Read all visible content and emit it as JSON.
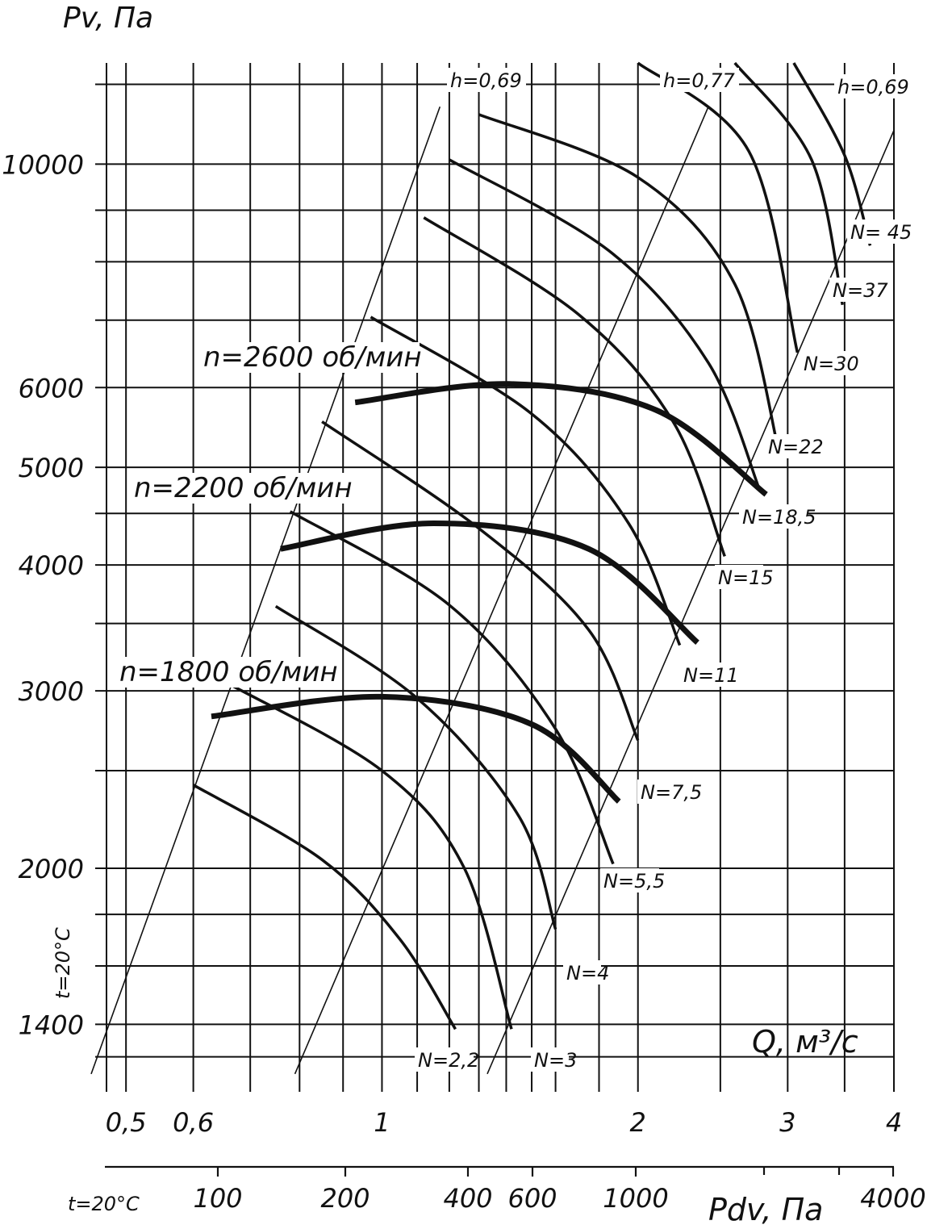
{
  "chart_data": {
    "type": "line",
    "y_axis": {
      "label": "Pv, Па",
      "scale": "log",
      "range": [
        1200,
        12600
      ],
      "ticks": [
        {
          "value": 10000,
          "label": "10000"
        },
        {
          "value": 6000,
          "label": "6000"
        },
        {
          "value": 5000,
          "label": "5000"
        },
        {
          "value": 4000,
          "label": "4000"
        },
        {
          "value": 3000,
          "label": "3000"
        },
        {
          "value": 2000,
          "label": "2000"
        },
        {
          "value": 1400,
          "label": "1400"
        }
      ],
      "side_label": "t=20°C"
    },
    "x_axis": {
      "label": "Q, м³/с",
      "scale": "log",
      "range": [
        0.46,
        4
      ],
      "ticks": [
        {
          "value": 0.5,
          "label": "0,5"
        },
        {
          "value": 0.6,
          "label": "0,6"
        },
        {
          "value": 1,
          "label": "1"
        },
        {
          "value": 2,
          "label": "2"
        },
        {
          "value": 3,
          "label": "3"
        },
        {
          "value": 4,
          "label": "4"
        }
      ]
    },
    "pdv_axis": {
      "label": "Pdv, Па",
      "side_label": "t=20°C",
      "ticks": [
        {
          "value": 100,
          "label": "100"
        },
        {
          "value": 200,
          "label": "200"
        },
        {
          "value": 400,
          "label": "400"
        },
        {
          "value": 600,
          "label": "600"
        },
        {
          "value": 1000,
          "label": "1000"
        },
        {
          "value": 4000,
          "label": "4000"
        }
      ]
    },
    "efficiency_lines": [
      {
        "name": "h=0,69",
        "points": [
          [
            0.455,
            1250
          ],
          [
            1.17,
            11400
          ]
        ]
      },
      {
        "name": "h=0,77",
        "points": [
          [
            0.79,
            1250
          ],
          [
            2.42,
            11400
          ]
        ]
      },
      {
        "name": "h=0,69",
        "points": [
          [
            1.33,
            1250
          ],
          [
            4.0,
            10800
          ]
        ]
      }
    ],
    "speed_curves": [
      {
        "name": "n=1800 об/мин",
        "points": [
          [
            0.63,
            2830
          ],
          [
            1.0,
            2960
          ],
          [
            1.5,
            2780
          ],
          [
            1.9,
            2330
          ]
        ]
      },
      {
        "name": "n=2200 об/мин",
        "points": [
          [
            0.76,
            4150
          ],
          [
            1.15,
            4400
          ],
          [
            1.75,
            4150
          ],
          [
            2.35,
            3350
          ]
        ]
      },
      {
        "name": "n=2600 об/мин",
        "points": [
          [
            0.93,
            5800
          ],
          [
            1.41,
            6050
          ],
          [
            2.1,
            5700
          ],
          [
            2.83,
            4700
          ]
        ]
      }
    ],
    "power_curves": [
      {
        "name": "N=2,2",
        "points": [
          [
            0.6,
            2420
          ],
          [
            0.85,
            2040
          ],
          [
            1.05,
            1700
          ],
          [
            1.22,
            1385
          ]
        ]
      },
      {
        "name": "N=3",
        "points": [
          [
            0.66,
            3050
          ],
          [
            1.0,
            2500
          ],
          [
            1.25,
            2000
          ],
          [
            1.42,
            1385
          ]
        ]
      },
      {
        "name": "N=4",
        "points": [
          [
            0.75,
            3640
          ],
          [
            1.1,
            2950
          ],
          [
            1.45,
            2250
          ],
          [
            1.6,
            1740
          ]
        ]
      },
      {
        "name": "N=5,5",
        "points": [
          [
            0.78,
            4520
          ],
          [
            1.2,
            3650
          ],
          [
            1.6,
            2750
          ],
          [
            1.87,
            2020
          ]
        ]
      },
      {
        "name": "N=7,5",
        "points": [
          [
            0.85,
            5550
          ],
          [
            1.3,
            4350
          ],
          [
            1.75,
            3450
          ],
          [
            2.0,
            2680
          ]
        ]
      },
      {
        "name": "N=11",
        "points": [
          [
            0.97,
            7050
          ],
          [
            1.5,
            5650
          ],
          [
            1.95,
            4400
          ],
          [
            2.24,
            3330
          ]
        ]
      },
      {
        "name": "N=15",
        "points": [
          [
            1.12,
            8850
          ],
          [
            1.7,
            7100
          ],
          [
            2.2,
            5550
          ],
          [
            2.53,
            4080
          ]
        ]
      },
      {
        "name": "N=18,5",
        "points": [
          [
            1.2,
            10100
          ],
          [
            1.85,
            8200
          ],
          [
            2.42,
            6350
          ],
          [
            2.78,
            4750
          ]
        ]
      },
      {
        "name": "N=22",
        "points": [
          [
            1.3,
            11200
          ],
          [
            2.0,
            9700
          ],
          [
            2.6,
            7600
          ],
          [
            2.93,
            5180
          ]
        ]
      },
      {
        "name": "N=30",
        "points": [
          [
            2.0,
            12600
          ],
          [
            2.7,
            10300
          ],
          [
            3.08,
            6500
          ]
        ]
      },
      {
        "name": "N=37",
        "points": [
          [
            2.6,
            12600
          ],
          [
            3.2,
            10100
          ],
          [
            3.48,
            7250
          ]
        ]
      },
      {
        "name": "N= 45",
        "points": [
          [
            3.05,
            12600
          ],
          [
            3.5,
            10200
          ],
          [
            3.75,
            8300
          ]
        ]
      }
    ]
  }
}
